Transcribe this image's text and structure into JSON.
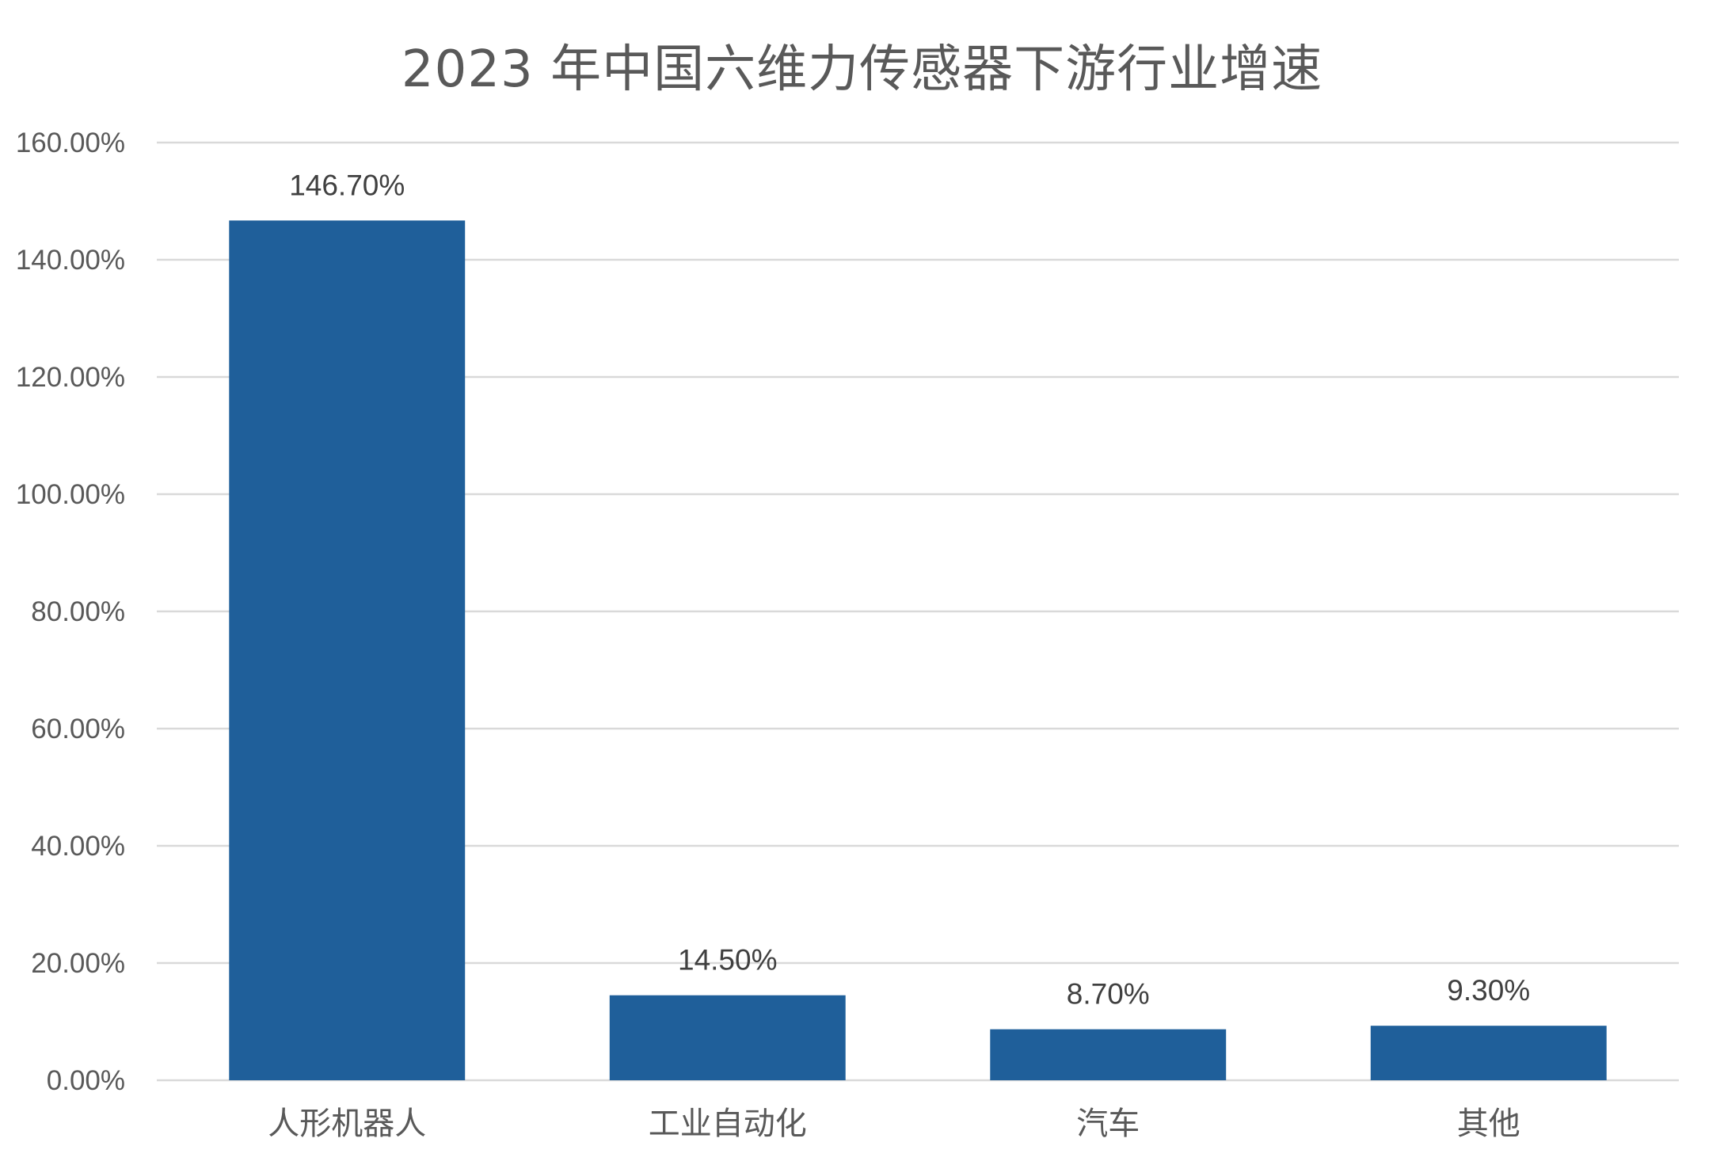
{
  "chart_data": {
    "type": "bar",
    "title": "2023 年中国六维力传感器下游行业增速",
    "xlabel": "",
    "ylabel": "",
    "categories": [
      "人形机器人",
      "工业自动化",
      "汽车",
      "其他"
    ],
    "values": [
      146.7,
      14.5,
      8.7,
      9.3
    ],
    "data_labels": [
      "146.70%",
      "14.50%",
      "8.70%",
      "9.30%"
    ],
    "ylim": [
      0,
      160
    ],
    "yticks": [
      0,
      20,
      40,
      60,
      80,
      100,
      120,
      140,
      160
    ],
    "ytick_labels": [
      "0.00%",
      "20.00%",
      "40.00%",
      "60.00%",
      "80.00%",
      "100.00%",
      "120.00%",
      "140.00%",
      "160.00%"
    ],
    "grid": true,
    "legend": "none",
    "bar_color": "#1F5F9A",
    "grid_color": "#D9D9D9"
  }
}
